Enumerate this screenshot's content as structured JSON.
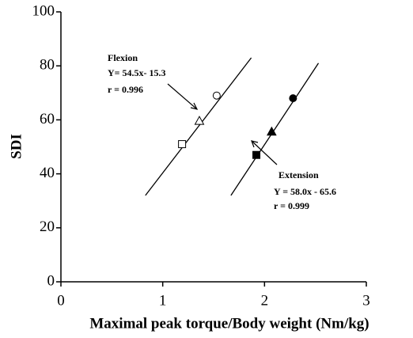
{
  "chart_data": {
    "type": "scatter",
    "x_label": "Maximal peak torque/Body weight (Nm/kg)",
    "y_label": "SDI",
    "xlim": [
      0,
      3
    ],
    "xticks": [
      0,
      1,
      2,
      3
    ],
    "ylim": [
      0,
      100
    ],
    "yticks": [
      0,
      20,
      40,
      60,
      80,
      100
    ],
    "color": "#000000",
    "series": [
      {
        "x": [
          1.19,
          1.36,
          1.53
        ],
        "values": [
          51,
          59.5,
          69
        ],
        "markers": [
          "square",
          "triangle",
          "circle"
        ],
        "filled": false
      },
      {
        "x": [
          1.92,
          2.07,
          2.28
        ],
        "values": [
          47,
          55.5,
          68
        ],
        "markers": [
          "square",
          "triangle",
          "circle"
        ],
        "filled": true
      }
    ],
    "fit_lines": [
      {
        "x": [
          0.83,
          1.87
        ],
        "values": [
          32,
          83
        ]
      },
      {
        "x": [
          1.67,
          2.53
        ],
        "values": [
          32,
          81
        ]
      }
    ],
    "annotations": [
      "Flexion",
      "Y=  54.5x- 15.3",
      "r = 0.996",
      "Extension",
      "Y = 58.0x - 65.6",
      "r = 0.999"
    ]
  }
}
